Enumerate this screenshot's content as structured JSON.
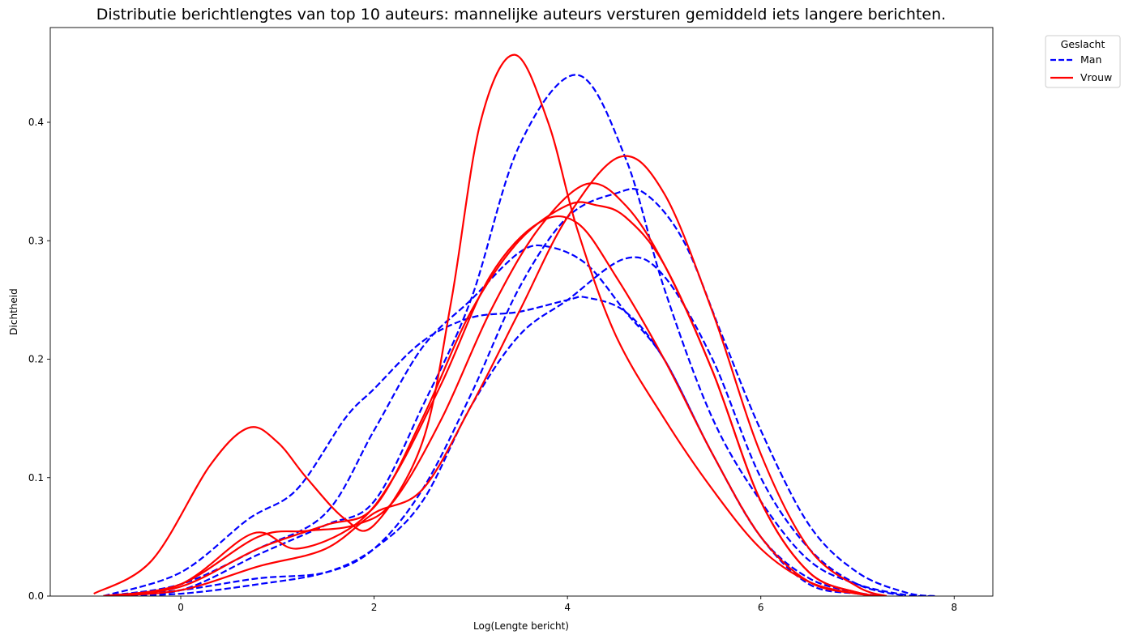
{
  "chart_data": {
    "type": "line",
    "title": "Distributie berichtlengtes van top 10 auteurs: mannelijke auteurs versturen gemiddeld iets langere berichten.",
    "xlabel": "Log(Lengte bericht)",
    "ylabel": "Dichtheid",
    "xlim": [
      -1.35,
      8.4
    ],
    "ylim": [
      0,
      0.48
    ],
    "xticks": [
      0,
      2,
      4,
      6,
      8
    ],
    "yticks": [
      0.0,
      0.1,
      0.2,
      0.3,
      0.4
    ],
    "grid": false,
    "legend": {
      "title": "Geslacht",
      "placement": "outside-top-right",
      "entries": [
        {
          "name": "Man",
          "color": "#0000ff",
          "style": "dashed"
        },
        {
          "name": "Vrouw",
          "color": "#ff0000",
          "style": "solid"
        }
      ]
    },
    "series": [
      {
        "group": "Man",
        "color": "#0000ff",
        "style": "dashed",
        "x": [
          -0.8,
          0,
          0.8,
          1.5,
          2.0,
          2.5,
          3.0,
          3.5,
          4.1,
          4.6,
          5.0,
          5.5,
          6.0,
          6.5,
          7.0,
          7.5,
          7.8
        ],
        "y": [
          0.0,
          0.005,
          0.035,
          0.06,
          0.08,
          0.16,
          0.25,
          0.38,
          0.44,
          0.37,
          0.26,
          0.15,
          0.08,
          0.03,
          0.01,
          0.001,
          0.0
        ]
      },
      {
        "group": "Man",
        "color": "#0000ff",
        "style": "dashed",
        "x": [
          -0.8,
          0,
          0.8,
          1.5,
          2.0,
          2.5,
          3.0,
          3.5,
          4.0,
          4.5,
          4.8,
          5.2,
          5.6,
          6.0,
          6.5,
          7.0,
          7.5,
          7.8
        ],
        "y": [
          0.0,
          0.005,
          0.015,
          0.02,
          0.04,
          0.09,
          0.17,
          0.26,
          0.32,
          0.34,
          0.34,
          0.3,
          0.22,
          0.14,
          0.06,
          0.02,
          0.003,
          0.0
        ]
      },
      {
        "group": "Man",
        "color": "#0000ff",
        "style": "dashed",
        "x": [
          -0.8,
          0,
          0.8,
          1.5,
          2.0,
          2.5,
          3.0,
          3.5,
          4.0,
          4.6,
          5.0,
          5.5,
          6.0,
          6.5,
          7.0,
          7.5
        ],
        "y": [
          0.0,
          0.002,
          0.01,
          0.02,
          0.04,
          0.08,
          0.16,
          0.22,
          0.25,
          0.285,
          0.27,
          0.2,
          0.1,
          0.04,
          0.01,
          0.0
        ]
      },
      {
        "group": "Man",
        "color": "#0000ff",
        "style": "dashed",
        "x": [
          -0.8,
          0,
          0.8,
          1.5,
          2.0,
          2.5,
          3.0,
          3.5,
          3.8,
          4.2,
          4.6,
          5.0,
          5.5,
          6.0,
          6.5,
          7.0,
          7.3
        ],
        "y": [
          0.0,
          0.01,
          0.04,
          0.07,
          0.14,
          0.21,
          0.25,
          0.29,
          0.295,
          0.28,
          0.24,
          0.2,
          0.12,
          0.05,
          0.01,
          0.002,
          0.0
        ]
      },
      {
        "group": "Man",
        "color": "#0000ff",
        "style": "dashed",
        "x": [
          -0.8,
          0,
          0.7,
          1.2,
          1.7,
          2.0,
          2.5,
          3.0,
          3.5,
          4.0,
          4.2,
          4.6,
          5.0,
          5.5,
          6.0,
          6.5,
          7.0,
          7.3
        ],
        "y": [
          0.0,
          0.02,
          0.065,
          0.09,
          0.15,
          0.175,
          0.215,
          0.235,
          0.24,
          0.25,
          0.252,
          0.24,
          0.2,
          0.12,
          0.05,
          0.015,
          0.003,
          0.0
        ]
      },
      {
        "group": "Vrouw",
        "color": "#ff0000",
        "style": "solid",
        "x": [
          -0.9,
          -0.3,
          0.3,
          0.7,
          1.0,
          1.3,
          1.7,
          2.0,
          2.5,
          2.8,
          3.1,
          3.45,
          3.8,
          4.1,
          4.5,
          5.0,
          5.5,
          6.0,
          6.5,
          7.0,
          7.3
        ],
        "y": [
          0.002,
          0.03,
          0.11,
          0.142,
          0.13,
          0.1,
          0.065,
          0.06,
          0.13,
          0.25,
          0.4,
          0.457,
          0.4,
          0.31,
          0.22,
          0.15,
          0.09,
          0.04,
          0.012,
          0.002,
          0.0
        ]
      },
      {
        "group": "Vrouw",
        "color": "#ff0000",
        "style": "solid",
        "x": [
          -0.8,
          0,
          0.8,
          1.5,
          2.0,
          2.5,
          3.0,
          3.5,
          4.0,
          4.3,
          4.6,
          5.0,
          5.5,
          6.0,
          6.5,
          7.0,
          7.3
        ],
        "y": [
          0.0,
          0.008,
          0.04,
          0.06,
          0.075,
          0.15,
          0.24,
          0.3,
          0.33,
          0.33,
          0.32,
          0.28,
          0.19,
          0.08,
          0.02,
          0.003,
          0.0
        ]
      },
      {
        "group": "Vrouw",
        "color": "#ff0000",
        "style": "solid",
        "x": [
          -0.8,
          0,
          0.75,
          1.2,
          1.8,
          2.2,
          2.7,
          3.2,
          3.7,
          4.1,
          4.5,
          5.0,
          5.5,
          6.0,
          6.5,
          7.0,
          7.3
        ],
        "y": [
          0.0,
          0.01,
          0.053,
          0.04,
          0.06,
          0.1,
          0.18,
          0.27,
          0.315,
          0.315,
          0.27,
          0.2,
          0.12,
          0.05,
          0.012,
          0.002,
          0.0
        ]
      },
      {
        "group": "Vrouw",
        "color": "#ff0000",
        "style": "solid",
        "x": [
          -0.8,
          0,
          0.8,
          1.3,
          1.8,
          2.2,
          2.7,
          3.2,
          3.7,
          4.2,
          4.6,
          5.0,
          5.5,
          6.0,
          6.5,
          7.0,
          7.3
        ],
        "y": [
          0.0,
          0.01,
          0.05,
          0.055,
          0.06,
          0.08,
          0.15,
          0.24,
          0.31,
          0.348,
          0.33,
          0.28,
          0.19,
          0.08,
          0.02,
          0.003,
          0.0
        ]
      },
      {
        "group": "Vrouw",
        "color": "#ff0000",
        "style": "solid",
        "x": [
          -0.8,
          0,
          0.8,
          1.5,
          2.0,
          2.5,
          3.0,
          3.5,
          4.0,
          4.55,
          5.0,
          5.5,
          6.0,
          6.5,
          7.0,
          7.3
        ],
        "y": [
          0.0,
          0.005,
          0.025,
          0.04,
          0.07,
          0.09,
          0.16,
          0.24,
          0.32,
          0.371,
          0.34,
          0.24,
          0.12,
          0.04,
          0.008,
          0.0
        ]
      }
    ]
  }
}
